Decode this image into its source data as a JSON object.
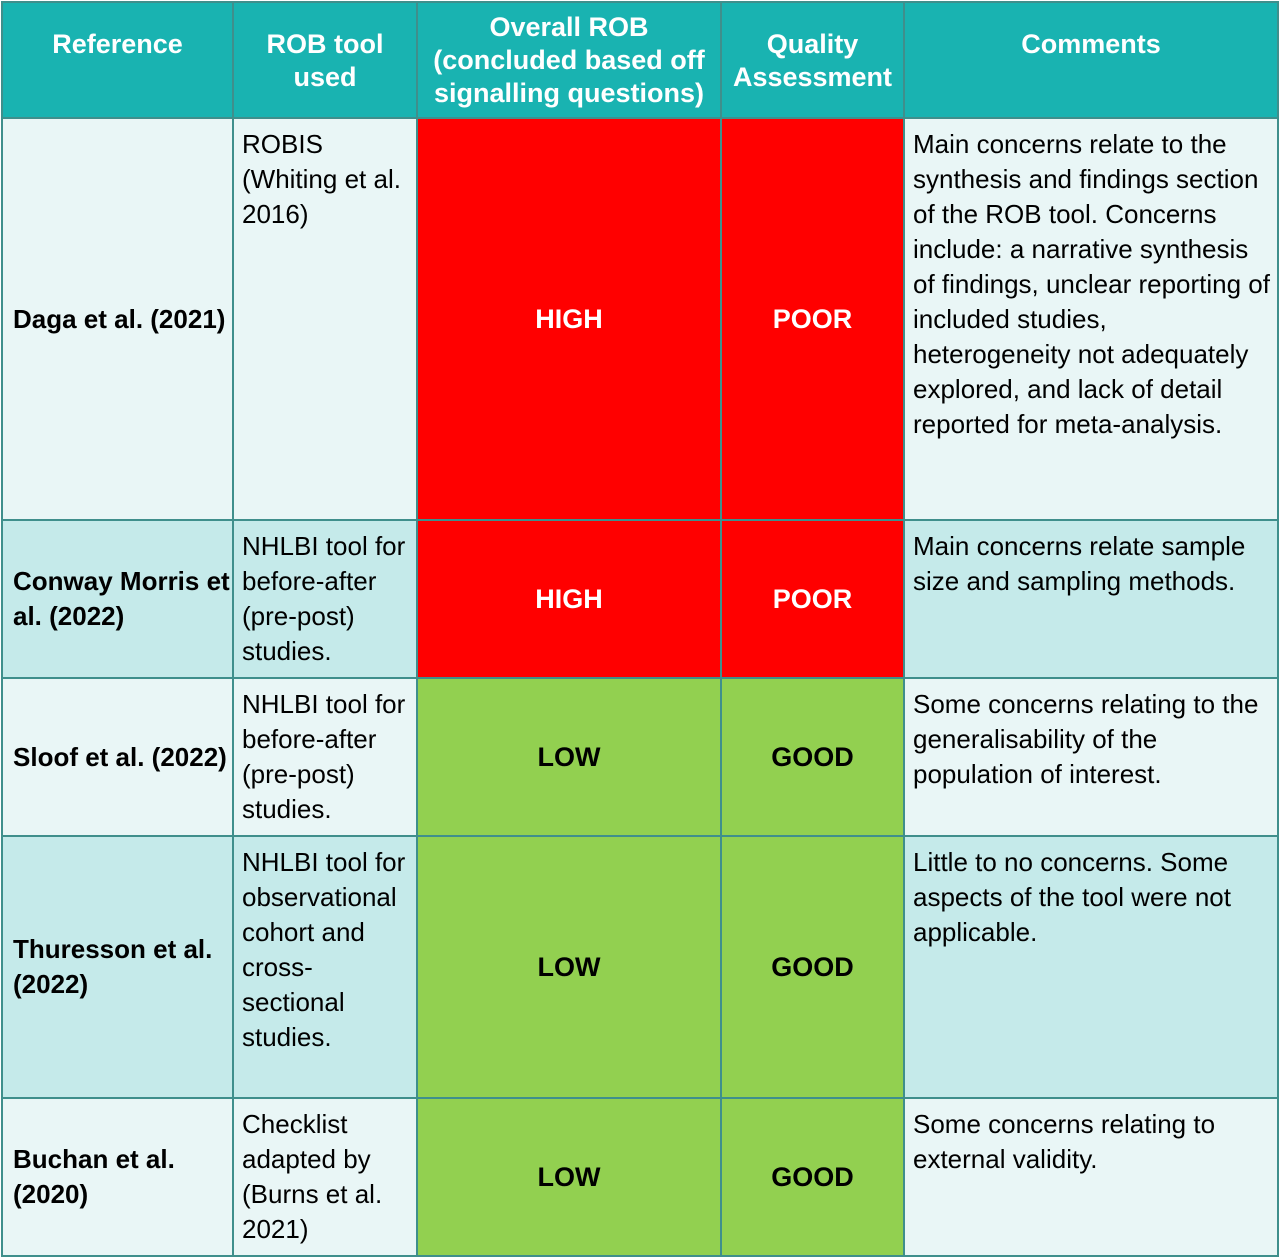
{
  "header": {
    "reference": "Reference",
    "tool": "ROB tool used",
    "overall": "Overall ROB (concluded based off signalling questions)",
    "quality": "Quality Assessment",
    "comments": "Comments"
  },
  "rows": [
    {
      "reference": "Daga et al. (2021)",
      "tool": "ROBIS (Whiting et al. 2016)",
      "overall": "HIGH",
      "quality": "POOR",
      "comments": "Main concerns relate to the synthesis and findings section of the ROB tool. Concerns include: a narrative synthesis of findings, unclear reporting of included studies, heterogeneity not adequately explored, and lack of detail reported for meta-analysis."
    },
    {
      "reference": "Conway Morris et al. (2022)",
      "tool": "NHLBI tool for before-after (pre-post) studies.",
      "overall": "HIGH",
      "quality": "POOR",
      "comments": "Main concerns relate sample size and sampling methods."
    },
    {
      "reference": "Sloof et al. (2022)",
      "tool": "NHLBI tool for before-after (pre-post) studies.",
      "overall": "LOW",
      "quality": "GOOD",
      "comments": "Some concerns relating to the generalisability of the population of interest."
    },
    {
      "reference": "Thuresson et al. (2022)",
      "tool": "NHLBI tool for observational cohort and cross-sectional studies.",
      "overall": "LOW",
      "quality": "GOOD",
      "comments": "Little to no concerns. Some aspects of the tool were not applicable."
    },
    {
      "reference": "Buchan et al. (2020)",
      "tool": "Checklist adapted by (Burns et al. 2021)",
      "overall": "LOW",
      "quality": "GOOD",
      "comments": "Some concerns relating to external validity."
    }
  ],
  "colors": {
    "header_bg": "#19b3b1",
    "row_light": "#e9f6f6",
    "row_dark": "#c5eaea",
    "high_poor": "#ff0000",
    "low_good": "#92d050"
  }
}
